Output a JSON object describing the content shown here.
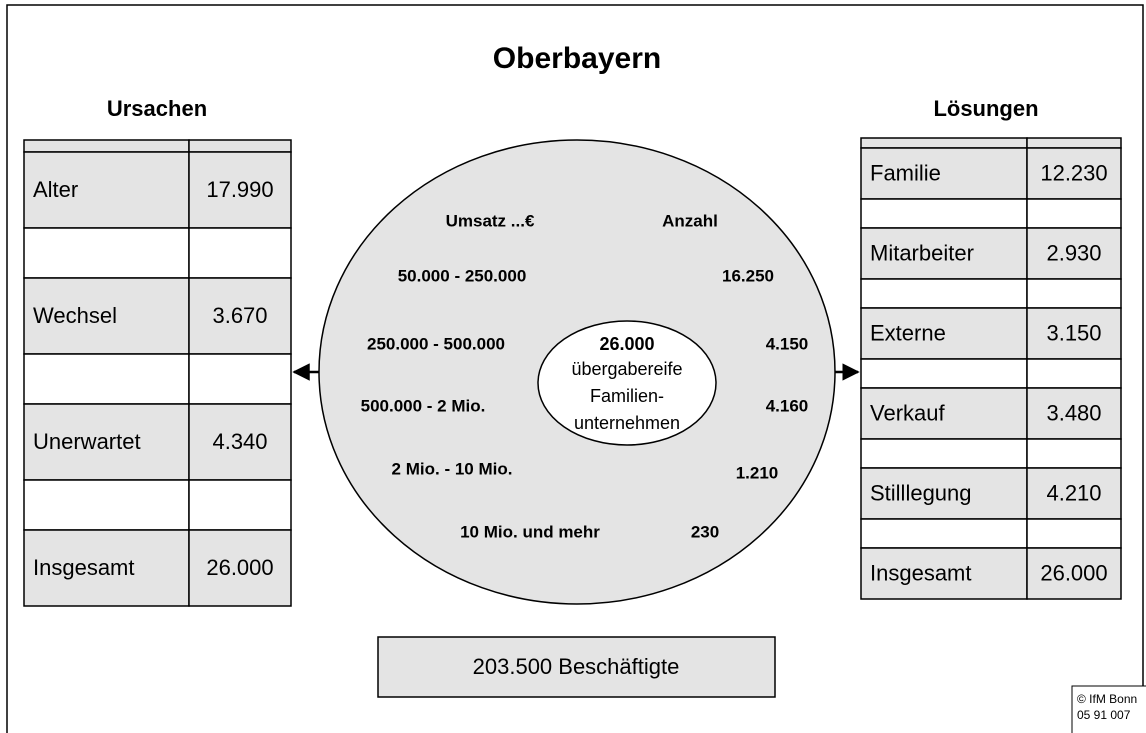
{
  "title": "Oberbayern",
  "ursachen": {
    "heading": "Ursachen",
    "rows": [
      [
        "Alter",
        "17.990"
      ],
      [
        "Wechsel",
        "3.670"
      ],
      [
        "Unerwartet",
        "4.340"
      ],
      [
        "Insgesamt",
        "26.000"
      ]
    ]
  },
  "loesungen": {
    "heading": "Lösungen",
    "rows": [
      [
        "Familie",
        "12.230"
      ],
      [
        "Mitarbeiter",
        "2.930"
      ],
      [
        "Externe",
        "3.150"
      ],
      [
        "Verkauf",
        "3.480"
      ],
      [
        "Stilllegung",
        "4.210"
      ],
      [
        "Insgesamt",
        "26.000"
      ]
    ]
  },
  "circle": {
    "header": [
      "Umsatz ...€",
      "Anzahl"
    ],
    "rows": [
      [
        "50.000 - 250.000",
        "16.250"
      ],
      [
        "250.000 - 500.000",
        "4.150"
      ],
      [
        "500.000 - 2 Mio.",
        "4.160"
      ],
      [
        "2 Mio. - 10 Mio.",
        "1.210"
      ],
      [
        "10 Mio. und mehr",
        "230"
      ]
    ],
    "center": [
      "26.000",
      "übergabereife",
      "Familien-",
      "unternehmen"
    ]
  },
  "employees": "203.500 Beschäftigte",
  "footer": [
    "© IfM Bonn",
    "05 91 007"
  ]
}
